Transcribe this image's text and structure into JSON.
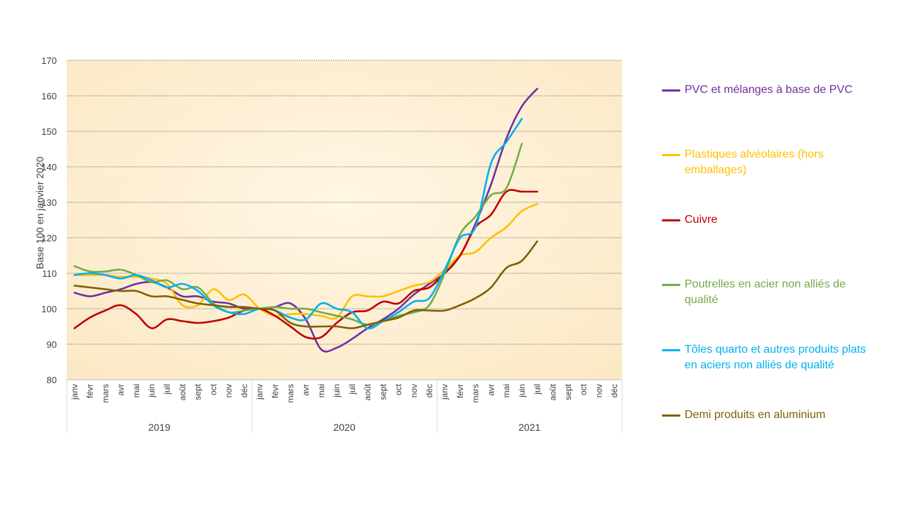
{
  "chart_data": {
    "type": "line",
    "ylabel": "Base 100 en janvier 2020",
    "ylim": [
      80,
      170
    ],
    "yticks": [
      80,
      90,
      100,
      110,
      120,
      130,
      140,
      150,
      160,
      170
    ],
    "grid": true,
    "legend_position": "right",
    "months": [
      "janv",
      "févr",
      "mars",
      "avr",
      "mai",
      "juin",
      "juil",
      "août",
      "sept",
      "oct",
      "nov",
      "déc"
    ],
    "years": [
      "2019",
      "2020",
      "2021"
    ],
    "series": [
      {
        "name": "PVC et mélanges à base de PVC",
        "color": "#7030A0",
        "values": [
          104.5,
          103.5,
          104.5,
          105.5,
          107,
          107.5,
          106,
          103.5,
          103.5,
          102,
          101.5,
          100,
          100,
          100.5,
          101.5,
          97,
          88.5,
          89,
          91.5,
          94.5,
          97,
          100,
          104,
          107,
          110,
          115,
          124,
          135,
          148,
          157,
          162
        ]
      },
      {
        "name": "Plastiques alvéolaires (hors emballages)",
        "color": "#FFC000",
        "values": [
          109.5,
          109.5,
          109.5,
          109,
          109,
          108.5,
          107,
          101,
          101,
          105.5,
          102.5,
          104,
          100,
          98,
          98.5,
          98.5,
          98,
          97.5,
          103.5,
          103.5,
          103.5,
          105,
          106.5,
          107.5,
          111,
          115,
          116,
          120,
          123,
          127.5,
          129.5
        ]
      },
      {
        "name": "Cuivre",
        "color": "#C00000",
        "values": [
          94.5,
          97.5,
          99.5,
          101,
          98.5,
          94.5,
          97,
          96.5,
          96,
          96.5,
          97.5,
          99.5,
          100,
          98,
          95,
          92,
          92,
          96,
          99,
          99.5,
          102,
          101.5,
          105,
          106,
          110,
          115,
          123,
          126.5,
          133,
          133,
          133
        ]
      },
      {
        "name": "Poutrelles en acier non alliés de qualité",
        "color": "#70AD47",
        "values": [
          112,
          110.5,
          110.5,
          111,
          109.5,
          107.5,
          108,
          105.5,
          106,
          101.5,
          99,
          99.5,
          100,
          100.5,
          100,
          100,
          99,
          98,
          97,
          95.5,
          96.5,
          98,
          99,
          101,
          110,
          121,
          126,
          132,
          134,
          146.5
        ]
      },
      {
        "name": "Tôles quarto et autres produits plats en aciers non alliés de qualité",
        "color": "#00B0F0",
        "values": [
          109.5,
          110,
          109.5,
          108.5,
          109.5,
          108,
          106,
          107,
          105,
          101,
          99,
          98.5,
          100,
          99.5,
          97.5,
          97,
          101.5,
          100,
          99,
          94.5,
          96.5,
          99,
          102,
          103,
          111,
          120,
          123,
          141,
          147,
          153.5
        ]
      },
      {
        "name": "Demi produits en aluminium",
        "color": "#7F6000",
        "values": [
          106.5,
          106,
          105.5,
          105,
          105,
          103.5,
          103.5,
          102.5,
          101.5,
          101,
          100.5,
          100.5,
          100,
          99.5,
          96,
          95,
          95,
          95,
          94.5,
          95.5,
          96.5,
          97.5,
          99.5,
          99.5,
          99.5,
          101,
          103,
          106,
          111.5,
          113.5,
          119
        ]
      }
    ]
  }
}
